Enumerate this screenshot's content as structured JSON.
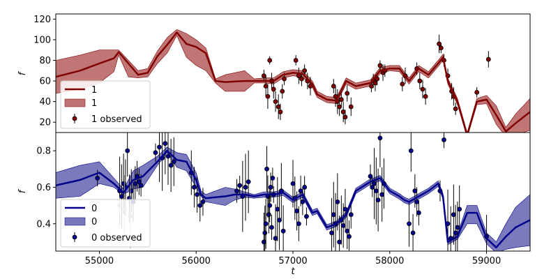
{
  "chart_data": [
    {
      "type": "line",
      "panel": "top",
      "xlabel": "",
      "ylabel": "f",
      "xlim": [
        54550,
        59450
      ],
      "ylim": [
        10,
        125
      ],
      "yticks": [
        20,
        40,
        60,
        80,
        100,
        120
      ],
      "grid": false,
      "legend": {
        "placement": "bottom-left",
        "entries": [
          {
            "label": "1",
            "kind": "line"
          },
          {
            "label": "1",
            "kind": "band"
          },
          {
            "label": "1 observed",
            "kind": "errorbar"
          }
        ]
      },
      "colors": {
        "line": "#800000",
        "band": "#b05050",
        "marker": "#800000"
      },
      "series": [
        {
          "name": "1",
          "kind": "model",
          "x": [
            54550,
            54800,
            55000,
            55150,
            55200,
            55300,
            55400,
            55500,
            55600,
            55700,
            55800,
            55900,
            56000,
            56100,
            56200,
            56300,
            56500,
            56600,
            56700,
            56800,
            56900,
            57000,
            57100,
            57200,
            57250,
            57350,
            57450,
            57550,
            57650,
            57800,
            57900,
            58000,
            58100,
            58200,
            58300,
            58400,
            58500,
            58550,
            58600,
            58700,
            58800,
            58900,
            59000,
            59100,
            59200,
            59300,
            59450
          ],
          "y": [
            64,
            70,
            77,
            82,
            88,
            77,
            66,
            68,
            84,
            95,
            107,
            96,
            93,
            87,
            60,
            59,
            60,
            60,
            60,
            60,
            66,
            68,
            67,
            57,
            47,
            42,
            41,
            60,
            55,
            58,
            70,
            72,
            72,
            60,
            72,
            66,
            77,
            83,
            60,
            40,
            7,
            40,
            42,
            27,
            11,
            19,
            30
          ],
          "lower": [
            48,
            52,
            58,
            69,
            85,
            64,
            63,
            64,
            77,
            87,
            104,
            83,
            75,
            70,
            58,
            50,
            50,
            58,
            58,
            57,
            63,
            65,
            64,
            54,
            44,
            39,
            38,
            57,
            52,
            55,
            67,
            70,
            69,
            57,
            69,
            63,
            74,
            80,
            57,
            37,
            5,
            37,
            38,
            18,
            6,
            8,
            12
          ],
          "upper": [
            80,
            85,
            90,
            90,
            90,
            80,
            70,
            72,
            89,
            102,
            110,
            106,
            100,
            92,
            62,
            66,
            70,
            62,
            63,
            63,
            69,
            71,
            70,
            60,
            50,
            45,
            44,
            63,
            58,
            61,
            73,
            75,
            75,
            63,
            75,
            69,
            80,
            86,
            63,
            43,
            10,
            43,
            46,
            36,
            15,
            28,
            43
          ]
        },
        {
          "name": "1 observed",
          "kind": "observed",
          "x": [
            56700,
            56720,
            56740,
            56760,
            56780,
            56800,
            56820,
            56850,
            56870,
            56890,
            56910,
            57030,
            57060,
            57090,
            57120,
            57150,
            57180,
            57420,
            57440,
            57460,
            57480,
            57500,
            57520,
            57540,
            57560,
            57600,
            57810,
            57830,
            57850,
            57870,
            57900,
            57930,
            57950,
            58130,
            58160,
            58280,
            58310,
            58340,
            58370,
            58510,
            58530,
            58560,
            58600,
            58640,
            58660,
            58680,
            58900,
            59020
          ],
          "y": [
            65,
            55,
            45,
            80,
            60,
            52,
            40,
            35,
            30,
            50,
            62,
            80,
            65,
            62,
            70,
            60,
            55,
            55,
            45,
            40,
            35,
            42,
            30,
            25,
            48,
            35,
            55,
            60,
            58,
            62,
            75,
            68,
            70,
            57,
            65,
            72,
            60,
            52,
            45,
            96,
            92,
            80,
            65,
            50,
            45,
            33,
            49,
            81
          ],
          "err": [
            6,
            10,
            12,
            4,
            8,
            9,
            10,
            12,
            8,
            7,
            6,
            5,
            8,
            7,
            6,
            8,
            9,
            7,
            10,
            12,
            9,
            8,
            10,
            7,
            8,
            9,
            6,
            7,
            8,
            6,
            5,
            8,
            6,
            7,
            8,
            6,
            8,
            9,
            8,
            9,
            5,
            6,
            7,
            8,
            9,
            6,
            5,
            8
          ]
        }
      ]
    },
    {
      "type": "line",
      "panel": "bottom",
      "xlabel": "t",
      "ylabel": "f",
      "xlim": [
        54550,
        59450
      ],
      "ylim": [
        0.25,
        0.9
      ],
      "xticks": [
        55000,
        56000,
        57000,
        58000,
        59000
      ],
      "yticks": [
        0.4,
        0.6,
        0.8
      ],
      "grid": false,
      "legend": {
        "placement": "bottom-left",
        "entries": [
          {
            "label": "0",
            "kind": "line"
          },
          {
            "label": "0",
            "kind": "band"
          },
          {
            "label": "0 observed",
            "kind": "errorbar"
          }
        ]
      },
      "colors": {
        "line": "#00008b",
        "band": "#5555aa",
        "marker": "#00008b"
      },
      "series": [
        {
          "name": "0",
          "kind": "model",
          "x": [
            54550,
            54800,
            55000,
            55150,
            55250,
            55350,
            55450,
            55600,
            55700,
            55800,
            55900,
            56000,
            56050,
            56100,
            56200,
            56300,
            56400,
            56500,
            56600,
            56700,
            56800,
            56900,
            57000,
            57100,
            57200,
            57250,
            57350,
            57450,
            57550,
            57650,
            57800,
            57900,
            58000,
            58100,
            58150,
            58200,
            58300,
            58400,
            58500,
            58550,
            58600,
            58700,
            58800,
            58900,
            59000,
            59100,
            59200,
            59300,
            59450
          ],
          "y": [
            0.61,
            0.64,
            0.68,
            0.62,
            0.57,
            0.64,
            0.66,
            0.74,
            0.8,
            0.75,
            0.74,
            0.64,
            0.56,
            0.54,
            0.545,
            0.55,
            0.56,
            0.56,
            0.55,
            0.56,
            0.56,
            0.57,
            0.53,
            0.56,
            0.46,
            0.47,
            0.38,
            0.4,
            0.45,
            0.58,
            0.63,
            0.65,
            0.58,
            0.55,
            0.53,
            0.52,
            0.55,
            0.58,
            0.62,
            0.55,
            0.3,
            0.33,
            0.46,
            0.46,
            0.32,
            0.27,
            0.33,
            0.38,
            0.42
          ],
          "lower": [
            0.54,
            0.55,
            0.62,
            0.6,
            0.56,
            0.59,
            0.6,
            0.72,
            0.79,
            0.71,
            0.69,
            0.6,
            0.55,
            0.52,
            0.51,
            0.5,
            0.53,
            0.545,
            0.54,
            0.545,
            0.545,
            0.555,
            0.515,
            0.545,
            0.445,
            0.455,
            0.365,
            0.385,
            0.435,
            0.565,
            0.615,
            0.635,
            0.565,
            0.535,
            0.515,
            0.505,
            0.535,
            0.565,
            0.605,
            0.535,
            0.285,
            0.315,
            0.4,
            0.4,
            0.29,
            0.24,
            0.26,
            0.27,
            0.28
          ],
          "upper": [
            0.68,
            0.72,
            0.74,
            0.65,
            0.59,
            0.69,
            0.72,
            0.77,
            0.82,
            0.79,
            0.78,
            0.68,
            0.58,
            0.56,
            0.58,
            0.6,
            0.59,
            0.575,
            0.56,
            0.575,
            0.575,
            0.585,
            0.545,
            0.575,
            0.475,
            0.485,
            0.395,
            0.415,
            0.465,
            0.595,
            0.645,
            0.665,
            0.595,
            0.565,
            0.545,
            0.535,
            0.565,
            0.595,
            0.635,
            0.565,
            0.315,
            0.345,
            0.5,
            0.5,
            0.35,
            0.3,
            0.4,
            0.49,
            0.56
          ]
        },
        {
          "name": "0 observed",
          "kind": "observed",
          "x": [
            54980,
            55210,
            55230,
            55250,
            55270,
            55290,
            55310,
            55330,
            55350,
            55370,
            55390,
            55410,
            55430,
            55580,
            55620,
            55650,
            55680,
            55710,
            55740,
            55770,
            55950,
            55980,
            56010,
            56040,
            56070,
            56420,
            56450,
            56480,
            56510,
            56540,
            56700,
            56710,
            56720,
            56730,
            56740,
            56750,
            56760,
            56770,
            56780,
            56790,
            56800,
            56820,
            56840,
            56860,
            56880,
            56900,
            57000,
            57020,
            57040,
            57060,
            57080,
            57100,
            57120,
            57140,
            57400,
            57420,
            57440,
            57460,
            57480,
            57500,
            57520,
            57540,
            57560,
            57580,
            57600,
            57800,
            57820,
            57840,
            57860,
            57880,
            57900,
            57920,
            57940,
            58200,
            58220,
            58240,
            58260,
            58280,
            58300,
            58520,
            58560,
            58600,
            58630,
            58660,
            58680,
            58700,
            58720,
            59000
          ],
          "y": [
            0.65,
            0.58,
            0.55,
            0.62,
            0.6,
            0.8,
            0.54,
            0.58,
            0.52,
            0.62,
            0.66,
            0.63,
            0.61,
            0.79,
            0.82,
            0.76,
            0.84,
            0.77,
            0.72,
            0.74,
            0.68,
            0.6,
            0.56,
            0.5,
            0.52,
            0.58,
            0.61,
            0.55,
            0.6,
            0.63,
            0.3,
            0.35,
            0.4,
            0.7,
            0.55,
            0.45,
            0.5,
            0.6,
            0.38,
            0.65,
            0.56,
            0.32,
            0.48,
            0.42,
            0.58,
            0.36,
            0.62,
            0.54,
            0.47,
            0.4,
            0.58,
            0.52,
            0.6,
            0.44,
            0.35,
            0.45,
            0.4,
            0.52,
            0.3,
            0.42,
            0.39,
            0.48,
            0.36,
            0.33,
            0.45,
            0.66,
            0.6,
            0.62,
            0.58,
            0.53,
            0.87,
            0.56,
            0.62,
            0.4,
            0.8,
            0.35,
            0.58,
            0.52,
            0.46,
            0.58,
            0.86,
            0.4,
            0.32,
            0.45,
            0.35,
            0.38,
            0.48,
            0.33
          ]
        },
        {
          "name": "grey observed",
          "kind": "observed-faded",
          "x": [
            55210,
            55260,
            55320
          ],
          "y": [
            0.5,
            0.48,
            0.44
          ]
        }
      ]
    }
  ],
  "annotations": {
    "top_panel_legend": [
      "1",
      "1",
      "1 observed"
    ],
    "bottom_panel_legend": [
      "0",
      "0",
      "0 observed"
    ]
  }
}
